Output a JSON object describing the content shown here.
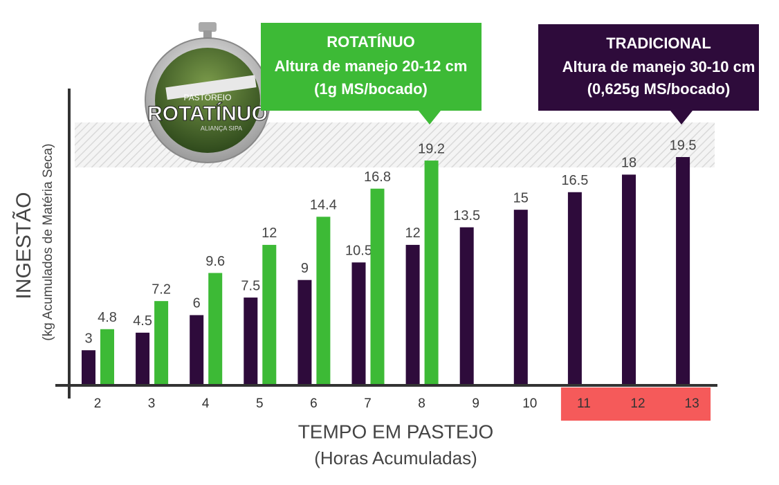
{
  "chart_data": {
    "type": "bar",
    "categories": [
      "2",
      "3",
      "4",
      "5",
      "6",
      "7",
      "8",
      "9",
      "10",
      "11",
      "12",
      "13"
    ],
    "series": [
      {
        "name": "TRADICIONAL",
        "color": "#2e0b3b",
        "notes": [
          "Altura de manejo 30-10 cm",
          "(0,625g MS/bocado)"
        ],
        "values": [
          3,
          4.5,
          6,
          7.5,
          9,
          10.5,
          12,
          13.5,
          15,
          16.5,
          18,
          19.5
        ]
      },
      {
        "name": "ROTATÍNUO",
        "color": "#3dba36",
        "notes": [
          "Altura de manejo 20-12 cm",
          "(1g MS/bocado)"
        ],
        "values": [
          4.8,
          7.2,
          9.6,
          12,
          14.4,
          16.8,
          19.2,
          null,
          null,
          null,
          null,
          null
        ]
      }
    ],
    "y_label": "INGESTÃO",
    "y_sublabel": "(kg Acumulados de Matéria Seca)",
    "x_label": "TEMPO EM PASTEJO",
    "x_sublabel": "(Horas Acumuladas)",
    "highlight": {
      "from": "11",
      "to": "13",
      "color": "#f55a5a"
    },
    "logo": {
      "top": "PASTOREIO",
      "name": "ROTATÍNUO",
      "bottom": "ALIANÇA SIPA"
    }
  }
}
